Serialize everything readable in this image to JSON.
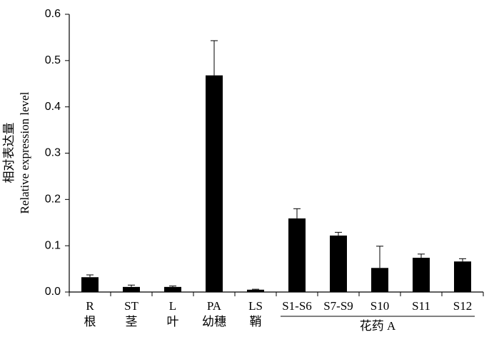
{
  "chart_data": {
    "type": "bar",
    "ylabel": [
      "相对表达量",
      "Relative expression level"
    ],
    "categories": [
      "R",
      "ST",
      "L",
      "PA",
      "LS",
      "S1-S6",
      "S7-S9",
      "S10",
      "S11",
      "S12"
    ],
    "category_sublabels": [
      "根",
      "茎",
      "叶",
      "幼穗",
      "鞘",
      null,
      null,
      null,
      null,
      null
    ],
    "groups": [
      {
        "label": "花药 A",
        "members": [
          "S1-S6",
          "S7-S9",
          "S10",
          "S11",
          "S12"
        ]
      }
    ],
    "values": [
      0.032,
      0.011,
      0.011,
      0.468,
      0.005,
      0.159,
      0.122,
      0.052,
      0.074,
      0.066
    ],
    "errors": [
      0.005,
      0.004,
      0.002,
      0.075,
      0.001,
      0.021,
      0.007,
      0.047,
      0.008,
      0.006
    ],
    "color": "#000000",
    "ylim": [
      0,
      0.6
    ],
    "yticks": [
      {
        "value": 0,
        "label": "0.0"
      },
      0.1,
      0.2,
      0.3,
      0.4,
      0.5,
      0.6
    ],
    "grid": false
  }
}
